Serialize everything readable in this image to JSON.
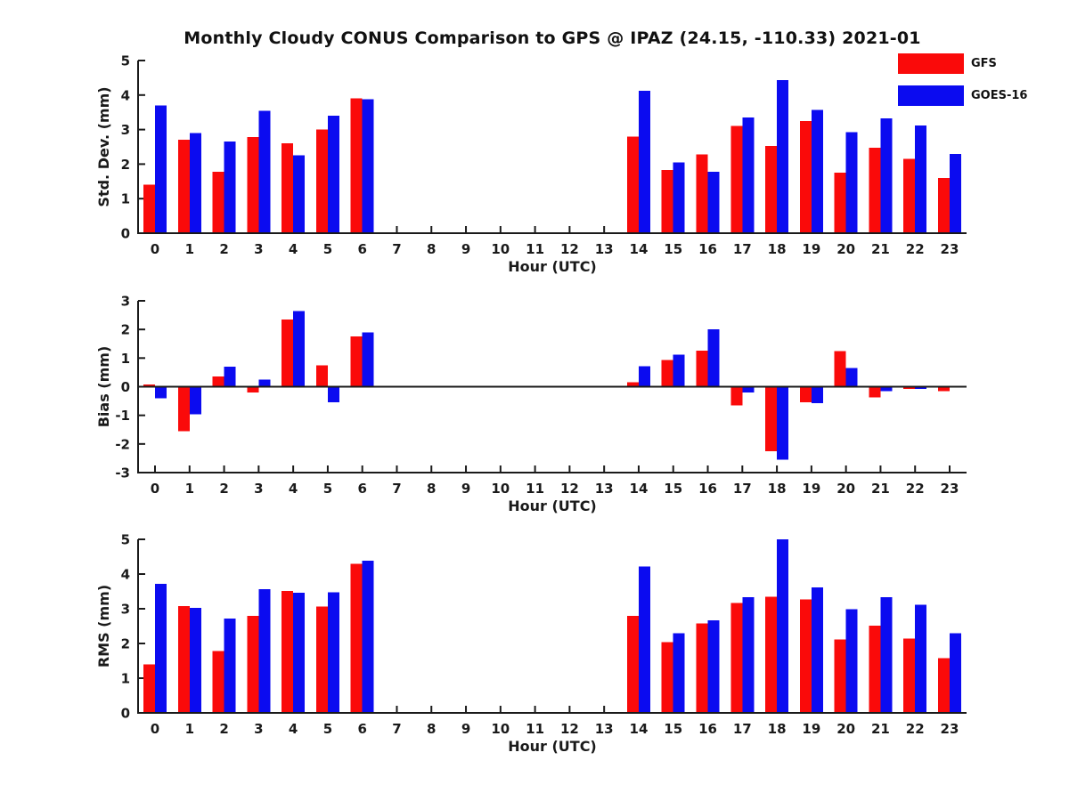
{
  "title": "Monthly Cloudy CONUS Comparison to GPS @ IPAZ (24.15, -110.33) 2021-01",
  "legend": {
    "items": [
      {
        "label": "GFS",
        "color": "#fa0a0a"
      },
      {
        "label": "GOES-16",
        "color": "#0b0bf0"
      }
    ]
  },
  "colors": {
    "gfs": "#fa0a0a",
    "goes16": "#0b0bf0",
    "axis": "#1a1a1a"
  },
  "chart_data": [
    {
      "type": "bar",
      "panel": "std-dev",
      "ylabel": "Std. Dev. (mm)",
      "xlabel": "Hour (UTC)",
      "ylim": [
        0,
        5
      ],
      "yticks": [
        0,
        1,
        2,
        3,
        4,
        5
      ],
      "grid": false,
      "categories": [
        "0",
        "1",
        "2",
        "3",
        "4",
        "5",
        "6",
        "7",
        "8",
        "9",
        "10",
        "11",
        "12",
        "13",
        "14",
        "15",
        "16",
        "17",
        "18",
        "19",
        "20",
        "21",
        "22",
        "23"
      ],
      "series": [
        {
          "name": "GFS",
          "color": "#fa0a0a",
          "values": [
            1.4,
            2.7,
            1.78,
            2.78,
            2.6,
            3.0,
            3.9,
            null,
            null,
            null,
            null,
            null,
            null,
            null,
            2.8,
            1.83,
            2.28,
            3.1,
            2.52,
            3.25,
            1.75,
            2.48,
            2.15,
            1.6
          ]
        },
        {
          "name": "GOES-16",
          "color": "#0b0bf0",
          "values": [
            3.7,
            2.9,
            2.65,
            3.55,
            2.25,
            3.4,
            3.88,
            null,
            null,
            null,
            null,
            null,
            null,
            null,
            4.12,
            2.05,
            1.78,
            3.35,
            4.43,
            3.57,
            2.93,
            3.33,
            3.12,
            2.3
          ]
        }
      ]
    },
    {
      "type": "bar",
      "panel": "bias",
      "ylabel": "Bias (mm)",
      "xlabel": "Hour (UTC)",
      "ylim": [
        -3,
        3
      ],
      "yticks": [
        -3,
        -2,
        -1,
        0,
        1,
        2,
        3
      ],
      "grid": false,
      "categories": [
        "0",
        "1",
        "2",
        "3",
        "4",
        "5",
        "6",
        "7",
        "8",
        "9",
        "10",
        "11",
        "12",
        "13",
        "14",
        "15",
        "16",
        "17",
        "18",
        "19",
        "20",
        "21",
        "22",
        "23"
      ],
      "series": [
        {
          "name": "GFS",
          "color": "#fa0a0a",
          "values": [
            0.07,
            -1.55,
            0.35,
            -0.2,
            2.35,
            0.75,
            1.75,
            null,
            null,
            null,
            null,
            null,
            null,
            null,
            0.16,
            0.94,
            1.26,
            -0.65,
            -2.25,
            -0.55,
            1.25,
            -0.38,
            -0.08,
            -0.15
          ]
        },
        {
          "name": "GOES-16",
          "color": "#0b0bf0",
          "values": [
            -0.4,
            -0.97,
            0.7,
            0.25,
            2.65,
            -0.55,
            1.9,
            null,
            null,
            null,
            null,
            null,
            null,
            null,
            0.72,
            1.12,
            2.0,
            -0.2,
            -2.55,
            -0.58,
            0.65,
            -0.15,
            -0.08,
            0
          ]
        }
      ]
    },
    {
      "type": "bar",
      "panel": "rms",
      "ylabel": "RMS (mm)",
      "xlabel": "Hour (UTC)",
      "ylim": [
        0,
        5
      ],
      "yticks": [
        0,
        1,
        2,
        3,
        4,
        5
      ],
      "grid": false,
      "categories": [
        "0",
        "1",
        "2",
        "3",
        "4",
        "5",
        "6",
        "7",
        "8",
        "9",
        "10",
        "11",
        "12",
        "13",
        "14",
        "15",
        "16",
        "17",
        "18",
        "19",
        "20",
        "21",
        "22",
        "23"
      ],
      "series": [
        {
          "name": "GFS",
          "color": "#fa0a0a",
          "values": [
            1.4,
            3.08,
            1.78,
            2.79,
            3.51,
            3.06,
            4.3,
            null,
            null,
            null,
            null,
            null,
            null,
            null,
            2.79,
            2.04,
            2.58,
            3.17,
            3.35,
            3.27,
            2.11,
            2.51,
            2.14,
            1.58
          ]
        },
        {
          "name": "GOES-16",
          "color": "#0b0bf0",
          "values": [
            3.72,
            3.03,
            2.72,
            3.57,
            3.46,
            3.47,
            4.38,
            null,
            null,
            null,
            null,
            null,
            null,
            null,
            4.22,
            2.3,
            2.67,
            3.33,
            5.0,
            3.62,
            2.99,
            3.33,
            3.12,
            2.29
          ]
        }
      ]
    }
  ]
}
